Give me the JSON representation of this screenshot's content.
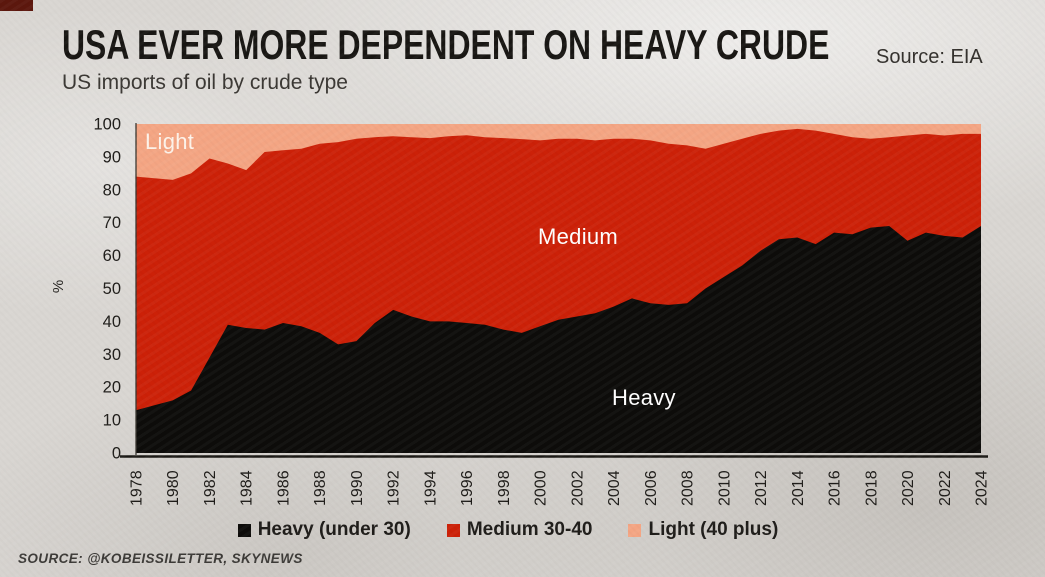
{
  "header": {
    "title": "USA EVER MORE DEPENDENT ON HEAVY CRUDE",
    "subtitle": "US imports of oil by crude type",
    "source_top": "Source: EIA"
  },
  "footer": {
    "source": "SOURCE: @KOBEISSILETTER, SKYNEWS"
  },
  "area_labels": {
    "light": "Light",
    "medium": "Medium",
    "heavy": "Heavy"
  },
  "legend": [
    {
      "label": "Heavy (under 30)",
      "color": "#0d0c0a"
    },
    {
      "label": "Medium 30-40",
      "color": "#cc2108"
    },
    {
      "label": "Light (40 plus)",
      "color": "#f4a583"
    }
  ],
  "colors": {
    "heavy": "#0d0c0a",
    "medium": "#cc2108",
    "light": "#f4a583",
    "background": "#d9d6d2",
    "axis": "#1a1814",
    "tick_text": "#1d1b18",
    "corner_patch": "#5c170d"
  },
  "chart_data": {
    "type": "area",
    "stacked": true,
    "percent": true,
    "title": "US imports of oil by crude type",
    "xlabel": "",
    "ylabel": "%",
    "ylim": [
      0,
      100
    ],
    "y_ticks": [
      0,
      10,
      20,
      30,
      40,
      50,
      60,
      70,
      80,
      90,
      100
    ],
    "grid": false,
    "legend_position": "bottom",
    "x": [
      1978,
      1979,
      1980,
      1981,
      1982,
      1983,
      1984,
      1985,
      1986,
      1987,
      1988,
      1989,
      1990,
      1991,
      1992,
      1993,
      1994,
      1995,
      1996,
      1997,
      1998,
      1999,
      2000,
      2001,
      2002,
      2003,
      2004,
      2005,
      2006,
      2007,
      2008,
      2009,
      2010,
      2011,
      2012,
      2013,
      2014,
      2015,
      2016,
      2017,
      2018,
      2019,
      2020,
      2021,
      2022,
      2023,
      2024
    ],
    "x_tick_labels": [
      "1978",
      "1980",
      "1982",
      "1984",
      "1986",
      "1988",
      "1990",
      "1992",
      "1994",
      "1996",
      "1998",
      "2000",
      "2002",
      "2004",
      "2006",
      "2008",
      "2010",
      "2012",
      "2014",
      "2016",
      "2018",
      "2020",
      "2022",
      "2024"
    ],
    "series": [
      {
        "name": "Heavy (under 30)",
        "color": "#0d0c0a",
        "values": [
          13,
          14.5,
          16,
          19,
          29,
          39,
          38,
          37.5,
          39.5,
          38.5,
          36.5,
          33,
          34,
          39.5,
          43.5,
          41.5,
          40,
          40,
          39.5,
          39,
          37.5,
          36.5,
          38.5,
          40.5,
          41.5,
          42.5,
          44.5,
          47,
          45.5,
          45,
          45.5,
          50,
          53.5,
          57,
          61.5,
          65,
          65.5,
          63.5,
          67,
          66.5,
          68.5,
          69,
          64.5,
          67,
          66,
          65.5,
          69
        ]
      },
      {
        "name": "Medium 30-40",
        "color": "#cc2108",
        "values": [
          71,
          69,
          67,
          66,
          60.5,
          49,
          48,
          54,
          52.5,
          54,
          57.5,
          61.5,
          61.5,
          56.5,
          52.8,
          54.5,
          55.7,
          56.3,
          57.1,
          57,
          58.2,
          58.9,
          56.5,
          55,
          54,
          52.5,
          51,
          48.5,
          49.5,
          49,
          48,
          42.5,
          40.5,
          38.5,
          35.5,
          33,
          33,
          34.5,
          30,
          29.5,
          27,
          27,
          32,
          30,
          30.5,
          31.5,
          28
        ]
      },
      {
        "name": "Light (40 plus)",
        "color": "#f4a583",
        "values": [
          16,
          16.5,
          17,
          15,
          10.5,
          12,
          14,
          8.5,
          8,
          7.5,
          6,
          5.5,
          4.5,
          4,
          3.7,
          4,
          4.3,
          3.7,
          3.4,
          4,
          4.3,
          4.6,
          5,
          4.5,
          4.5,
          5,
          4.5,
          4.5,
          5,
          6,
          6.5,
          7.5,
          6,
          4.5,
          3,
          2,
          1.5,
          2,
          3,
          4,
          4.5,
          4,
          3.5,
          3,
          3.5,
          3,
          3
        ]
      }
    ]
  }
}
